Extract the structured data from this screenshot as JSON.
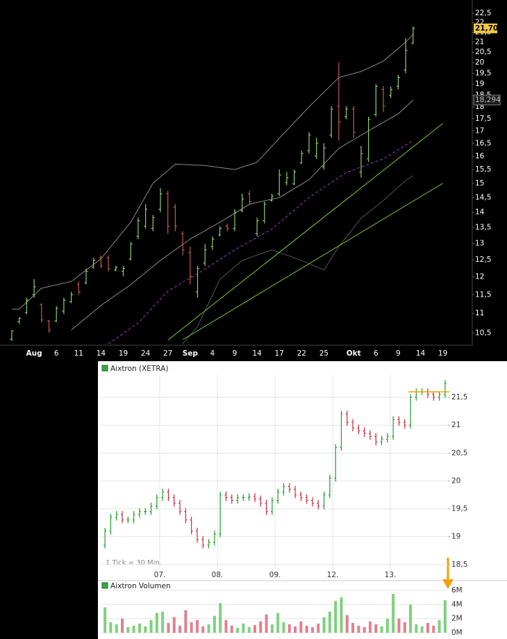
{
  "chart_data": [
    {
      "type": "ohlc",
      "log": true,
      "grid": false,
      "up_color": "#90d070",
      "down_color": "#c85a50",
      "categories": [
        null,
        null,
        null,
        "Aug",
        null,
        null,
        "6",
        null,
        null,
        "11",
        null,
        null,
        "14",
        null,
        null,
        "19",
        null,
        null,
        "24",
        null,
        null,
        "27",
        null,
        null,
        "Sep",
        null,
        null,
        "4",
        null,
        null,
        "9",
        null,
        null,
        "14",
        null,
        null,
        "17",
        null,
        null,
        "22",
        null,
        null,
        "25",
        null,
        null,
        null,
        "Okt",
        null,
        null,
        "6",
        null,
        null,
        "9",
        null,
        null,
        "14",
        null,
        null,
        "19"
      ],
      "open": [
        10.34,
        10.79,
        11.02,
        11.5,
        11.23,
        10.8,
        10.8,
        11.06,
        11.31,
        11.79,
        11.83,
        12.28,
        12.56,
        12.56,
        12.2,
        12.16,
        12.52,
        13.22,
        13.54,
        13.47,
        14.1,
        14.63,
        14.17,
        13.3,
        12.72,
        11.58,
        12.4,
        12.9,
        13.26,
        13.54,
        13.47,
        14.05,
        14.63,
        13.3,
        13.72,
        14.4,
        14.63,
        15.03,
        14.98,
        15.75,
        16.21,
        16.0,
        15.6,
        16.83,
        18.03,
        17.58,
        17.9,
        15.41,
        15.9,
        17.67,
        18.76,
        18.5,
        18.9,
        19.65,
        20.95,
        null,
        null,
        null,
        null
      ],
      "high": [
        10.57,
        10.9,
        11.42,
        11.94,
        11.27,
        10.83,
        11.19,
        11.42,
        11.58,
        11.87,
        12.24,
        12.56,
        12.63,
        12.63,
        12.32,
        12.32,
        13.04,
        13.82,
        14.27,
        13.91,
        14.83,
        14.73,
        14.27,
        13.38,
        12.9,
        12.32,
        12.98,
        13.22,
        13.54,
        13.63,
        14.1,
        14.63,
        14.73,
        13.82,
        14.36,
        14.63,
        15.5,
        15.41,
        15.5,
        16.21,
        16.94,
        16.72,
        16.5,
        18.03,
        20.0,
        18.03,
        18.03,
        16.4,
        17.58,
        19.0,
        18.9,
        18.9,
        19.42,
        21.2,
        21.8,
        null,
        null,
        null,
        null
      ],
      "low": [
        10.3,
        10.72,
        10.98,
        11.42,
        10.77,
        10.5,
        10.77,
        10.98,
        11.27,
        11.5,
        11.79,
        12.24,
        12.24,
        12.16,
        12.16,
        12.02,
        12.48,
        13.13,
        13.47,
        13.38,
        14.0,
        13.3,
        13.38,
        12.63,
        11.79,
        11.42,
        12.32,
        12.8,
        13.22,
        13.38,
        13.38,
        14.0,
        14.27,
        13.22,
        13.63,
        14.36,
        14.55,
        14.93,
        14.93,
        15.71,
        16.1,
        15.9,
        15.5,
        16.72,
        16.61,
        17.47,
        16.72,
        15.2,
        15.79,
        17.58,
        17.78,
        18.38,
        18.76,
        19.5,
        20.9,
        null,
        null,
        null,
        null
      ],
      "close": [
        10.55,
        10.87,
        11.35,
        11.72,
        10.83,
        10.57,
        11.13,
        11.35,
        11.5,
        11.58,
        12.16,
        12.48,
        12.32,
        12.24,
        12.28,
        12.24,
        12.98,
        13.72,
        14.1,
        13.82,
        14.63,
        13.54,
        13.54,
        12.8,
        12.02,
        12.24,
        12.8,
        13.13,
        13.47,
        13.47,
        14.0,
        14.45,
        14.36,
        13.72,
        14.27,
        14.55,
        15.3,
        15.2,
        15.41,
        16.1,
        16.83,
        16.5,
        16.32,
        17.9,
        17.36,
        17.9,
        16.94,
        16.1,
        17.47,
        18.9,
        18.03,
        18.76,
        19.3,
        20.6,
        21.7,
        null,
        null,
        null,
        null
      ],
      "lines": [
        {
          "color": "#8a8a8a",
          "dash": false,
          "x": [
            0,
            1,
            4,
            8,
            12,
            16,
            19,
            22,
            26,
            30,
            33,
            36,
            40,
            44,
            47,
            50,
            53,
            54
          ],
          "values": [
            11.11,
            11.11,
            11.68,
            11.87,
            12.53,
            13.67,
            15.0,
            15.7,
            15.65,
            15.5,
            15.77,
            16.7,
            18.0,
            19.3,
            19.58,
            20.07,
            21.0,
            21.4
          ]
        },
        {
          "color": "#8a8a8a",
          "dash": false,
          "x": [
            8,
            12,
            16,
            20,
            24,
            28,
            32,
            36,
            40,
            44,
            48,
            52,
            54
          ],
          "values": [
            10.57,
            11.21,
            11.78,
            12.48,
            13.13,
            13.67,
            14.27,
            14.5,
            15.13,
            16.3,
            17.0,
            17.7,
            18.294
          ]
        },
        {
          "color": "#555555",
          "dash": false,
          "x": [
            23,
            25,
            28,
            31,
            35,
            39,
            42,
            44,
            47,
            50,
            53,
            54
          ],
          "values": [
            10.23,
            10.66,
            11.93,
            12.48,
            12.8,
            12.48,
            12.2,
            12.9,
            13.8,
            14.4,
            15.1,
            15.27
          ]
        },
        {
          "color": "#9a40c0",
          "dash": true,
          "x": [
            13,
            17,
            21,
            25,
            30,
            35,
            40,
            45,
            50,
            54
          ],
          "values": [
            10.23,
            10.75,
            11.6,
            12.09,
            12.8,
            13.45,
            14.5,
            15.39,
            15.9,
            16.6
          ]
        },
        {
          "color": "#77cc33",
          "dash": false,
          "x": [
            21,
            58
          ],
          "values": [
            10.32,
            17.3
          ]
        },
        {
          "color": "#77cc33",
          "dash": false,
          "x": [
            23,
            58
          ],
          "values": [
            10.33,
            15.0
          ]
        }
      ],
      "ylim": [
        10.23,
        23.22
      ],
      "yticks": [
        {
          "value": 10.5,
          "label": "10,5"
        },
        11,
        {
          "value": 11.5,
          "label": "11,5"
        },
        12,
        {
          "value": 12.5,
          "label": "12,5"
        },
        13,
        {
          "value": 13.5,
          "label": "13,5"
        },
        14,
        {
          "value": 14.5,
          "label": "14,5"
        },
        15,
        {
          "value": 15.5,
          "label": "15,5"
        },
        16,
        {
          "value": 16.5,
          "label": "16,5"
        },
        17,
        {
          "value": 17.5,
          "label": "17,5"
        },
        18,
        {
          "value": 18.5,
          "label": "18,5"
        },
        19,
        {
          "value": 19.5,
          "label": "19,5"
        },
        20,
        {
          "value": 20.5,
          "label": "20,5"
        },
        21,
        {
          "value": 21.5,
          "label": "21,5"
        },
        22,
        {
          "value": 22.5,
          "label": "22,5"
        }
      ],
      "price_label": {
        "value": 21.7,
        "label": "21,70"
      },
      "indicator_label": {
        "value": 18.294,
        "label": "18,294"
      }
    },
    {
      "type": "ohlc",
      "log": false,
      "grid": true,
      "title": "Aixtron (XETRA)",
      "note": "1 Tick = 30 Min.",
      "up_color": "#1f9a2f",
      "down_color": "#c8283c",
      "categories": [
        null,
        null,
        null,
        null,
        null,
        null,
        null,
        null,
        null,
        null,
        "07.",
        null,
        null,
        null,
        null,
        null,
        null,
        null,
        null,
        null,
        "08.",
        null,
        null,
        null,
        null,
        null,
        null,
        null,
        null,
        null,
        "09.",
        null,
        null,
        null,
        null,
        null,
        null,
        null,
        null,
        null,
        "12.",
        null,
        null,
        null,
        null,
        null,
        null,
        null,
        null,
        null,
        "13.",
        null,
        null,
        null,
        null,
        null,
        null,
        null,
        null,
        null
      ],
      "open": [
        18.85,
        19.1,
        19.35,
        19.4,
        19.3,
        19.3,
        19.4,
        19.45,
        19.45,
        19.55,
        19.7,
        19.8,
        19.7,
        19.6,
        19.45,
        19.3,
        19.1,
        18.95,
        18.85,
        18.9,
        19.05,
        19.75,
        19.7,
        19.65,
        19.7,
        19.7,
        19.72,
        19.68,
        19.6,
        19.45,
        19.65,
        19.8,
        19.9,
        19.85,
        19.75,
        19.7,
        19.65,
        19.6,
        19.55,
        19.75,
        20.05,
        20.6,
        21.2,
        21.05,
        20.95,
        20.9,
        20.85,
        20.8,
        20.7,
        20.75,
        20.8,
        21.1,
        21.05,
        21.0,
        21.5,
        21.6,
        21.6,
        21.55,
        21.5,
        21.55
      ],
      "high": [
        19.16,
        19.41,
        19.46,
        19.46,
        19.36,
        19.46,
        19.51,
        19.51,
        19.61,
        19.76,
        19.86,
        19.86,
        19.76,
        19.66,
        19.51,
        19.36,
        19.16,
        19.01,
        18.96,
        19.11,
        19.81,
        19.81,
        19.76,
        19.76,
        19.76,
        19.78,
        19.78,
        19.74,
        19.66,
        19.71,
        19.86,
        19.96,
        19.96,
        19.91,
        19.81,
        19.76,
        19.71,
        19.66,
        19.81,
        20.11,
        20.66,
        21.26,
        21.26,
        21.11,
        21.01,
        20.96,
        20.91,
        20.86,
        20.81,
        20.86,
        21.16,
        21.16,
        21.11,
        21.56,
        21.66,
        21.66,
        21.66,
        21.61,
        21.61,
        21.81
      ],
      "low": [
        18.79,
        19.04,
        19.29,
        19.24,
        19.24,
        19.24,
        19.34,
        19.39,
        19.39,
        19.49,
        19.64,
        19.64,
        19.54,
        19.39,
        19.24,
        19.04,
        18.89,
        18.79,
        18.79,
        18.84,
        18.99,
        19.64,
        19.59,
        19.59,
        19.64,
        19.64,
        19.62,
        19.54,
        19.39,
        19.39,
        19.59,
        19.74,
        19.79,
        19.69,
        19.64,
        19.59,
        19.54,
        19.49,
        19.49,
        19.69,
        19.99,
        20.54,
        20.99,
        20.89,
        20.84,
        20.79,
        20.74,
        20.64,
        20.64,
        20.69,
        20.74,
        20.99,
        20.94,
        20.94,
        21.44,
        21.54,
        21.49,
        21.44,
        21.44,
        21.49
      ],
      "close": [
        19.1,
        19.35,
        19.4,
        19.3,
        19.3,
        19.4,
        19.45,
        19.45,
        19.55,
        19.7,
        19.8,
        19.7,
        19.6,
        19.45,
        19.3,
        19.1,
        18.95,
        18.85,
        18.9,
        19.05,
        19.75,
        19.7,
        19.65,
        19.7,
        19.7,
        19.72,
        19.68,
        19.6,
        19.45,
        19.65,
        19.8,
        19.9,
        19.85,
        19.75,
        19.7,
        19.65,
        19.6,
        19.55,
        19.75,
        20.05,
        20.6,
        21.2,
        21.05,
        20.95,
        20.9,
        20.85,
        20.8,
        20.7,
        20.75,
        20.8,
        21.1,
        21.05,
        21.0,
        21.5,
        21.6,
        21.6,
        21.55,
        21.5,
        21.55,
        21.75
      ],
      "ylim": [
        18.41,
        21.9
      ],
      "yticks": [
        {
          "value": 18.5,
          "label": "18,5"
        },
        19,
        {
          "value": 19.5,
          "label": "19,5"
        },
        20,
        {
          "value": 20.5,
          "label": "20,5"
        },
        21,
        {
          "value": 21.5,
          "label": "21,5"
        }
      ],
      "level": {
        "value": 21.6,
        "color": "#f0a000"
      },
      "volume": {
        "title": "Aixtron Volumen",
        "values": [
          3600000,
          1500000,
          1200000,
          2000000,
          800000,
          1000000,
          1300000,
          900000,
          1800000,
          2800000,
          3000000,
          1400000,
          2200000,
          1000000,
          3200000,
          1500000,
          1800000,
          900000,
          1200000,
          2400000,
          4200000,
          1800000,
          1000000,
          700000,
          1300000,
          800000,
          1100000,
          1600000,
          2600000,
          1200000,
          2800000,
          1500000,
          1200000,
          900000,
          1600000,
          1000000,
          800000,
          1300000,
          2200000,
          3000000,
          4500000,
          5000000,
          2500000,
          1400000,
          1000000,
          800000,
          1600000,
          1200000,
          900000,
          2000000,
          5500000,
          2000000,
          1500000,
          4000000,
          1200000,
          900000,
          1400000,
          1000000,
          1800000,
          4600000
        ],
        "ylim": [
          0,
          6000000
        ],
        "yticks": [
          {
            "value": 0,
            "label": "0M"
          },
          {
            "value": 2000000,
            "label": "2M"
          },
          {
            "value": 4000000,
            "label": "4M"
          },
          {
            "value": 6000000,
            "label": "6M"
          }
        ]
      }
    }
  ]
}
